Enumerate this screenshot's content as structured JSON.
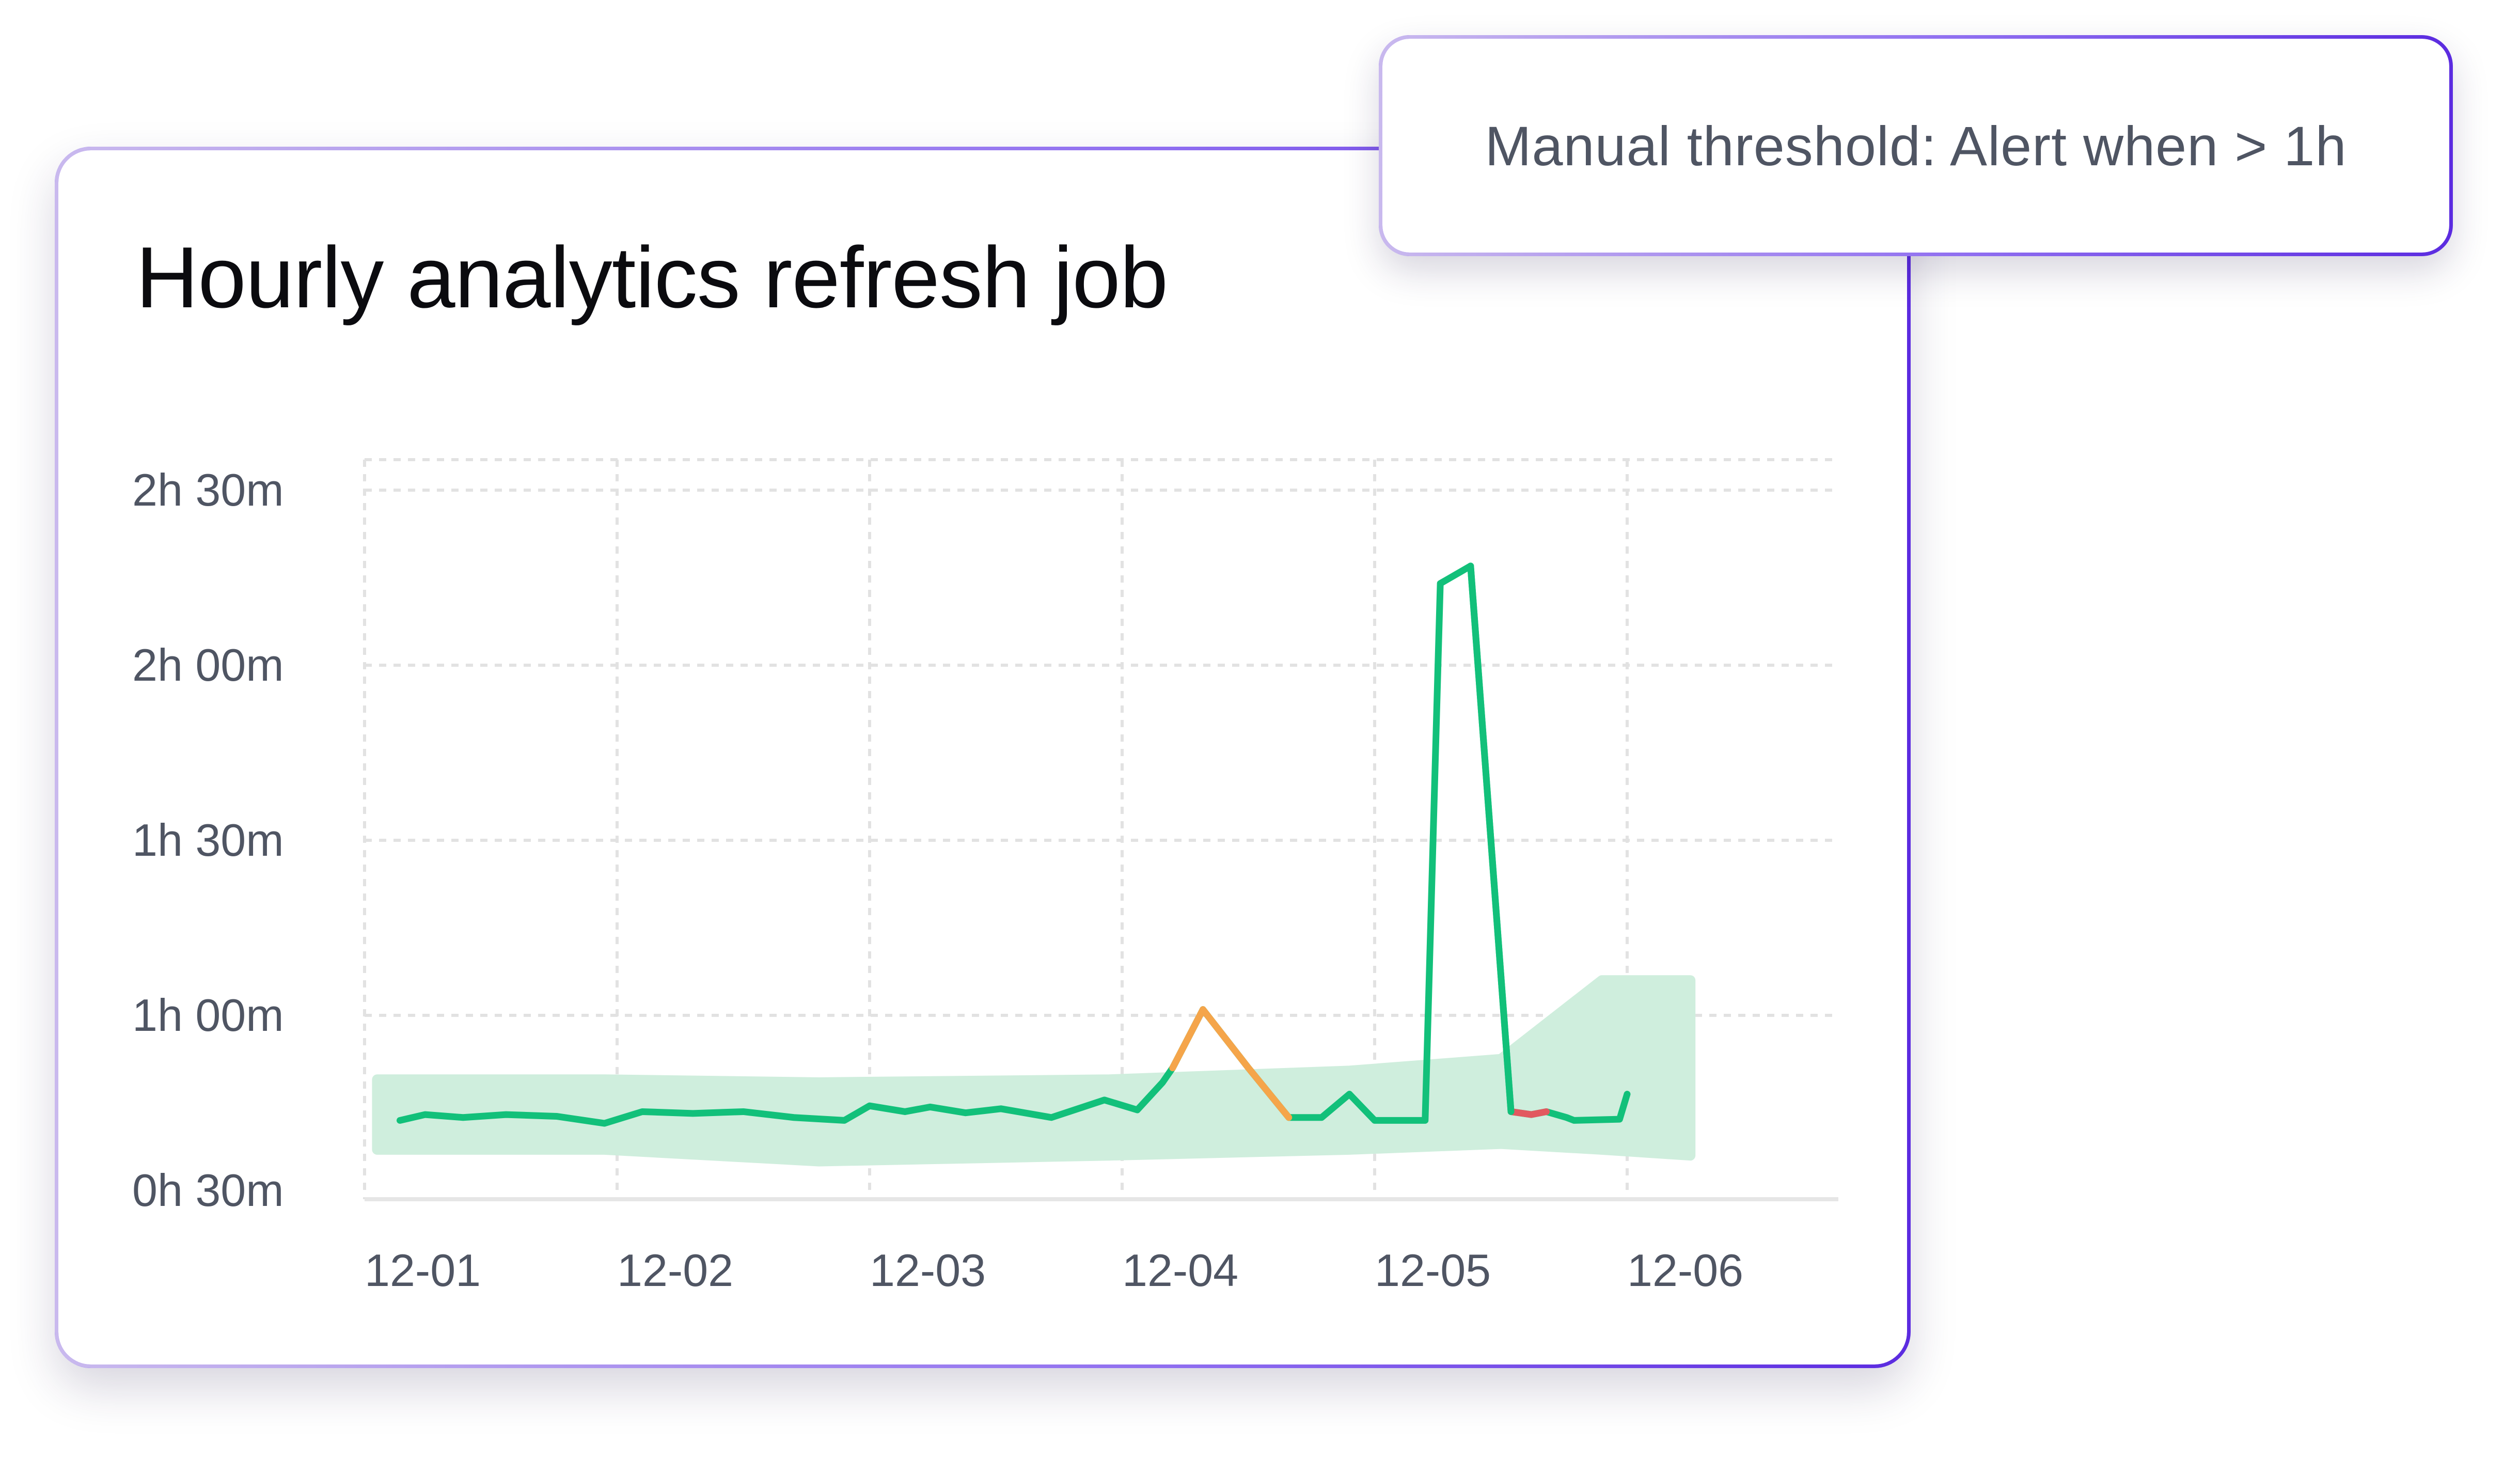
{
  "card": {
    "title": "Hourly analytics refresh job"
  },
  "tooltip": {
    "text": "Manual threshold: Alert when > 1h"
  },
  "colors": {
    "normal_line": "#12c07a",
    "warning_line": "#f5a54a",
    "alert_line": "#e2585f",
    "band_fill": "#cfeedd",
    "grid": "#e2e2e2",
    "axis": "#e6e6e6",
    "accent_border": "#8b6cf0"
  },
  "chart_data": {
    "type": "line",
    "title": "Hourly analytics refresh job",
    "xlabel": "",
    "ylabel": "",
    "x_tick_labels": [
      "12-01",
      "12-02",
      "12-03",
      "12-04",
      "12-05",
      "12-06"
    ],
    "y_tick_labels": [
      "0h 30m",
      "1h 00m",
      "1h 30m",
      "2h 00m",
      "2h 30m"
    ],
    "y_ticks_minutes": [
      30,
      60,
      90,
      120,
      150
    ],
    "xlim_days": [
      0,
      5.8
    ],
    "ylim_minutes": [
      30,
      155
    ],
    "grid": true,
    "threshold_minutes": 60,
    "series": [
      {
        "x_days": [
          0.14,
          0.24,
          0.39,
          0.56,
          0.76,
          0.95,
          1.1,
          1.3,
          1.5,
          1.7,
          1.9,
          2.0,
          2.14,
          2.24,
          2.38,
          2.52,
          2.72,
          2.93,
          3.06,
          3.16,
          3.2,
          3.32,
          3.5,
          3.66,
          3.79,
          3.9,
          4.0,
          4.1,
          4.2,
          4.26,
          4.38,
          4.54,
          4.62,
          4.68,
          4.76,
          4.79,
          4.97,
          5.0
        ],
        "y_minutes": [
          42,
          43,
          42.5,
          43,
          42.7,
          41.5,
          43.5,
          43.2,
          43.5,
          42.5,
          42,
          44.5,
          43.5,
          44.3,
          43.3,
          44,
          42.5,
          45.5,
          43.8,
          48.5,
          51,
          61,
          51,
          42.5,
          42.5,
          46.5,
          42,
          42,
          42,
          134,
          137,
          43.5,
          43,
          43.5,
          42.5,
          42,
          42.2,
          46.5
        ],
        "alerts": [
          {
            "from_day": 3.2,
            "to_day": 3.66,
            "level": "warning"
          },
          {
            "from_day": 4.54,
            "to_day": 4.68,
            "level": "alert"
          }
        ]
      }
    ],
    "expected_band": {
      "x_days": [
        0.05,
        0.95,
        1.8,
        2.95,
        3.9,
        4.5,
        4.9,
        5.25
      ],
      "upper_minutes": [
        49,
        49,
        48.5,
        49,
        50.5,
        52.5,
        66,
        66
      ],
      "lower_minutes": [
        37,
        37,
        35,
        36,
        37,
        38,
        37,
        36
      ]
    }
  }
}
